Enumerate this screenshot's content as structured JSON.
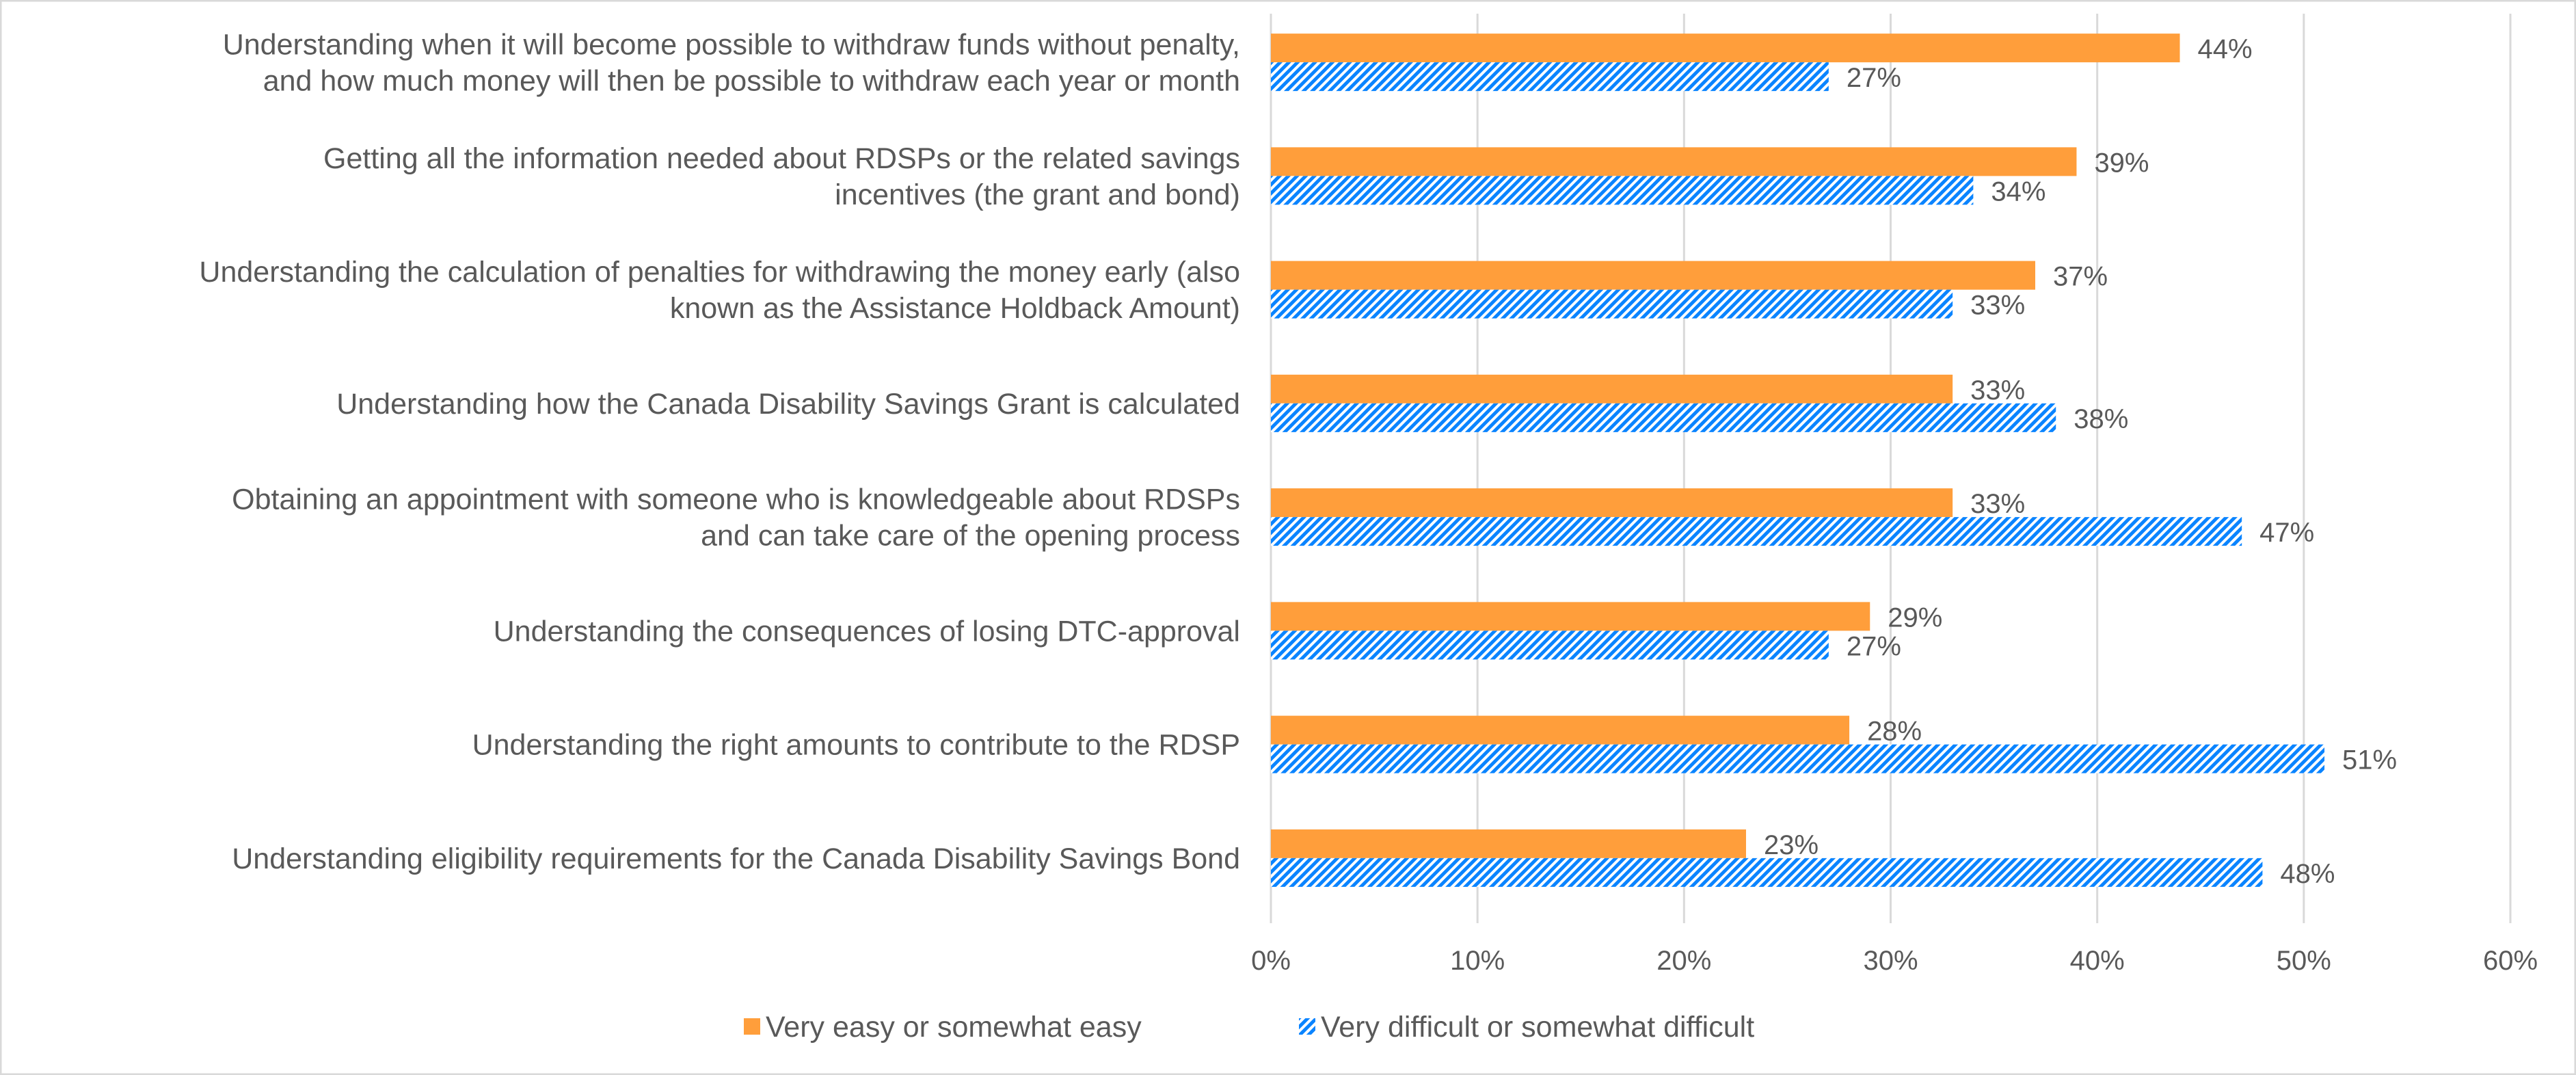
{
  "chart_data": {
    "type": "bar",
    "orientation": "horizontal",
    "categories": [
      [
        "Understanding when it will become possible to withdraw funds without penalty,",
        "and how much money will then be possible to withdraw each year or month"
      ],
      [
        "Getting all the information needed about RDSPs or the related savings",
        "incentives (the grant and bond)"
      ],
      [
        "Understanding the calculation of penalties for withdrawing the money early (also",
        "known as the Assistance Holdback Amount)"
      ],
      [
        "Understanding how the Canada Disability Savings Grant is calculated"
      ],
      [
        "Obtaining an appointment with someone who is knowledgeable about RDSPs",
        "and can take care of the opening process"
      ],
      [
        "Understanding the consequences of losing DTC-approval"
      ],
      [
        "Understanding the right amounts to contribute to the RDSP"
      ],
      [
        "Understanding eligibility requirements for the Canada Disability Savings Bond"
      ]
    ],
    "series": [
      {
        "name": "Very easy or somewhat easy",
        "values": [
          44,
          39,
          37,
          33,
          33,
          29,
          28,
          23
        ],
        "color": "#FF9E3B",
        "fill": "solid"
      },
      {
        "name": "Very difficult or somewhat difficult",
        "values": [
          27,
          34,
          33,
          38,
          47,
          27,
          51,
          48
        ],
        "color": "#0A84FF",
        "fill": "diagonal-hatch"
      }
    ],
    "value_suffix": "%",
    "xlim": [
      0,
      60
    ],
    "xticks": [
      "0%",
      "10%",
      "20%",
      "30%",
      "40%",
      "50%",
      "60%"
    ],
    "grid": "vertical",
    "legend": "bottom",
    "title": "",
    "xlabel": "",
    "ylabel": ""
  }
}
